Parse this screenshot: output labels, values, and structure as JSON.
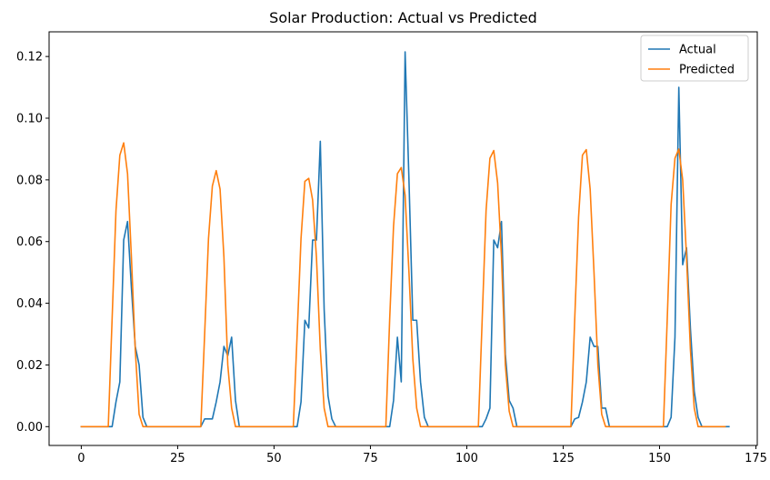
{
  "chart_data": {
    "type": "line",
    "title": "Solar Production: Actual vs Predicted",
    "xlabel": "",
    "ylabel": "",
    "xlim": [
      -8.35,
      175.35
    ],
    "ylim": [
      -0.0061,
      0.128
    ],
    "xticks": [
      0,
      25,
      50,
      75,
      100,
      125,
      150,
      175
    ],
    "xtick_labels": [
      "0",
      "25",
      "50",
      "75",
      "100",
      "125",
      "150",
      "175"
    ],
    "yticks": [
      0.0,
      0.02,
      0.04,
      0.06,
      0.08,
      0.1,
      0.12
    ],
    "ytick_labels": [
      "0.00",
      "0.02",
      "0.04",
      "0.06",
      "0.08",
      "0.10",
      "0.12"
    ],
    "grid": false,
    "legend_position": "top-right",
    "series": [
      {
        "name": "Actual",
        "color": "#1f77b4",
        "values": [
          0,
          0,
          0,
          0,
          0,
          0,
          0,
          0,
          0,
          0.008,
          0.0145,
          0.0605,
          0.0665,
          0.045,
          0.026,
          0.02,
          0.003,
          0,
          0,
          0,
          0,
          0,
          0,
          0,
          0,
          0,
          0,
          0,
          0,
          0,
          0,
          0,
          0.0025,
          0.0025,
          0.0025,
          0.008,
          0.0145,
          0.026,
          0.023,
          0.029,
          0.0085,
          0,
          0,
          0,
          0,
          0,
          0,
          0,
          0,
          0,
          0,
          0,
          0,
          0,
          0,
          0,
          0,
          0.008,
          0.0345,
          0.032,
          0.0605,
          0.0605,
          0.0925,
          0.038,
          0.01,
          0.0025,
          0,
          0,
          0,
          0,
          0,
          0,
          0,
          0,
          0,
          0,
          0,
          0,
          0,
          0,
          0,
          0.0085,
          0.029,
          0.0145,
          0.1215,
          0.08,
          0.0345,
          0.0345,
          0.0145,
          0.003,
          0,
          0,
          0,
          0,
          0,
          0,
          0,
          0,
          0,
          0,
          0,
          0,
          0,
          0,
          0,
          0.0025,
          0.006,
          0.0605,
          0.058,
          0.0665,
          0.0235,
          0.0085,
          0.006,
          0,
          0,
          0,
          0,
          0,
          0,
          0,
          0,
          0,
          0,
          0,
          0,
          0,
          0,
          0,
          0.0025,
          0.003,
          0.008,
          0.0145,
          0.029,
          0.026,
          0.026,
          0.006,
          0.006,
          0,
          0,
          0,
          0,
          0,
          0,
          0,
          0,
          0,
          0,
          0,
          0,
          0,
          0,
          0,
          0,
          0.003,
          0.029,
          0.11,
          0.0525,
          0.058,
          0.032,
          0.0115,
          0.003,
          0,
          0,
          0,
          0,
          0,
          0,
          0,
          0
        ]
      },
      {
        "name": "Predicted",
        "color": "#ff7f0e",
        "values": [
          0,
          0,
          0,
          0,
          0,
          0,
          0,
          0,
          0.035,
          0.07,
          0.088,
          0.092,
          0.082,
          0.055,
          0.025,
          0.004,
          0,
          0,
          0,
          0,
          0,
          0,
          0,
          0,
          0,
          0,
          0,
          0,
          0,
          0,
          0,
          0,
          0.03,
          0.061,
          0.078,
          0.083,
          0.077,
          0.055,
          0.02,
          0.006,
          0,
          0,
          0,
          0,
          0,
          0,
          0,
          0,
          0,
          0,
          0,
          0,
          0,
          0,
          0,
          0,
          0.03,
          0.061,
          0.0795,
          0.0805,
          0.0735,
          0.055,
          0.025,
          0.006,
          0,
          0,
          0,
          0,
          0,
          0,
          0,
          0,
          0,
          0,
          0,
          0,
          0,
          0,
          0,
          0,
          0.035,
          0.065,
          0.082,
          0.084,
          0.075,
          0.05,
          0.022,
          0.006,
          0,
          0,
          0,
          0,
          0,
          0,
          0,
          0,
          0,
          0,
          0,
          0,
          0,
          0,
          0,
          0,
          0.035,
          0.07,
          0.087,
          0.0895,
          0.079,
          0.055,
          0.02,
          0.005,
          0,
          0,
          0,
          0,
          0,
          0,
          0,
          0,
          0,
          0,
          0,
          0,
          0,
          0,
          0,
          0,
          0.035,
          0.068,
          0.088,
          0.0898,
          0.077,
          0.05,
          0.02,
          0.004,
          0,
          0,
          0,
          0,
          0,
          0,
          0,
          0,
          0,
          0,
          0,
          0,
          0,
          0,
          0,
          0,
          0.035,
          0.072,
          0.087,
          0.09,
          0.08,
          0.055,
          0.025,
          0.006,
          0,
          0,
          0,
          0,
          0,
          0,
          0,
          0
        ]
      }
    ]
  }
}
